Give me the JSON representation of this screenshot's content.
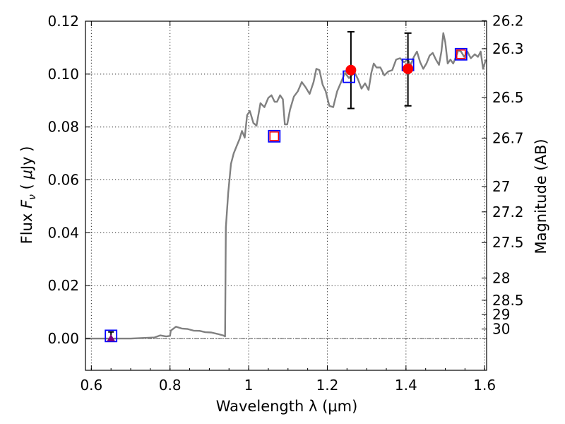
{
  "chart_data": {
    "type": "line",
    "xlabel": "Wavelength  λ (μm)",
    "ylabel_left": "Flux  F_ν  ( μJy )",
    "ylabel_right": "Magnitude (AB)",
    "xlim": [
      0.585,
      1.605
    ],
    "ylim": [
      -0.012,
      0.12
    ],
    "grid": true,
    "x_ticks": [
      0.6,
      0.8,
      1.0,
      1.2,
      1.4,
      1.6
    ],
    "x_tick_labels": [
      "0.6",
      "0.8",
      "1",
      "1.2",
      "1.4",
      "1.6"
    ],
    "y_ticks": [
      0.0,
      0.02,
      0.04,
      0.06,
      0.08,
      0.1,
      0.12
    ],
    "y_tick_labels": [
      "0.00",
      "0.02",
      "0.04",
      "0.06",
      "0.08",
      "0.10",
      "0.12"
    ],
    "mag_ticks": [
      {
        "label": "26.2",
        "flux": 0.1202
      },
      {
        "label": "26.3",
        "flux": 0.1096
      },
      {
        "label": "26.5",
        "flux": 0.0912
      },
      {
        "label": "26.7",
        "flux": 0.0758
      },
      {
        "label": "27",
        "flux": 0.0575
      },
      {
        "label": "27.2",
        "flux": 0.0479
      },
      {
        "label": "27.5",
        "flux": 0.0363
      },
      {
        "label": "28",
        "flux": 0.0229
      },
      {
        "label": "28.5",
        "flux": 0.0145
      },
      {
        "label": "29",
        "flux": 0.0091
      },
      {
        "label": "30",
        "flux": 0.0036
      }
    ],
    "series": [
      {
        "kind": "model-spectrum",
        "color": "#808080",
        "points": [
          [
            0.585,
            0.0
          ],
          [
            0.7,
            0.0
          ],
          [
            0.73,
            0.0002
          ],
          [
            0.76,
            0.0004
          ],
          [
            0.775,
            0.0012
          ],
          [
            0.79,
            0.0008
          ],
          [
            0.8,
            0.001
          ],
          [
            0.802,
            0.003
          ],
          [
            0.815,
            0.0045
          ],
          [
            0.83,
            0.0038
          ],
          [
            0.845,
            0.0036
          ],
          [
            0.86,
            0.003
          ],
          [
            0.875,
            0.0029
          ],
          [
            0.89,
            0.0024
          ],
          [
            0.905,
            0.0023
          ],
          [
            0.92,
            0.0018
          ],
          [
            0.935,
            0.0012
          ],
          [
            0.94,
            0.0008
          ],
          [
            0.942,
            0.042
          ],
          [
            0.948,
            0.055
          ],
          [
            0.955,
            0.066
          ],
          [
            0.962,
            0.07
          ],
          [
            0.97,
            0.073
          ],
          [
            0.977,
            0.0755
          ],
          [
            0.983,
            0.0785
          ],
          [
            0.99,
            0.076
          ],
          [
            0.996,
            0.0845
          ],
          [
            1.003,
            0.086
          ],
          [
            1.012,
            0.0815
          ],
          [
            1.02,
            0.0805
          ],
          [
            1.03,
            0.089
          ],
          [
            1.04,
            0.0875
          ],
          [
            1.05,
            0.091
          ],
          [
            1.058,
            0.092
          ],
          [
            1.066,
            0.0895
          ],
          [
            1.072,
            0.0895
          ],
          [
            1.08,
            0.092
          ],
          [
            1.087,
            0.0905
          ],
          [
            1.092,
            0.081
          ],
          [
            1.098,
            0.081
          ],
          [
            1.105,
            0.0865
          ],
          [
            1.115,
            0.0915
          ],
          [
            1.125,
            0.0935
          ],
          [
            1.135,
            0.097
          ],
          [
            1.145,
            0.095
          ],
          [
            1.155,
            0.0925
          ],
          [
            1.165,
            0.097
          ],
          [
            1.172,
            0.102
          ],
          [
            1.18,
            0.1015
          ],
          [
            1.188,
            0.096
          ],
          [
            1.196,
            0.0935
          ],
          [
            1.205,
            0.088
          ],
          [
            1.215,
            0.0875
          ],
          [
            1.225,
            0.0935
          ],
          [
            1.235,
            0.097
          ],
          [
            1.245,
            0.1005
          ],
          [
            1.255,
            0.0985
          ],
          [
            1.262,
            0.0995
          ],
          [
            1.27,
            0.1005
          ],
          [
            1.278,
            0.098
          ],
          [
            1.287,
            0.0945
          ],
          [
            1.296,
            0.0965
          ],
          [
            1.305,
            0.094
          ],
          [
            1.312,
            0.1005
          ],
          [
            1.318,
            0.104
          ],
          [
            1.325,
            0.1025
          ],
          [
            1.335,
            0.1025
          ],
          [
            1.345,
            0.0995
          ],
          [
            1.355,
            0.101
          ],
          [
            1.365,
            0.1015
          ],
          [
            1.375,
            0.1055
          ],
          [
            1.385,
            0.106
          ],
          [
            1.395,
            0.1045
          ],
          [
            1.405,
            0.1055
          ],
          [
            1.412,
            0.1035
          ],
          [
            1.42,
            0.1065
          ],
          [
            1.428,
            0.1085
          ],
          [
            1.436,
            0.1045
          ],
          [
            1.444,
            0.102
          ],
          [
            1.452,
            0.104
          ],
          [
            1.46,
            0.107
          ],
          [
            1.468,
            0.108
          ],
          [
            1.476,
            0.1055
          ],
          [
            1.484,
            0.1035
          ],
          [
            1.49,
            0.1085
          ],
          [
            1.495,
            0.1155
          ],
          [
            1.5,
            0.112
          ],
          [
            1.506,
            0.104
          ],
          [
            1.513,
            0.1055
          ],
          [
            1.52,
            0.104
          ],
          [
            1.527,
            0.1065
          ],
          [
            1.533,
            0.109
          ],
          [
            1.54,
            0.1085
          ],
          [
            1.548,
            0.1065
          ],
          [
            1.556,
            0.1085
          ],
          [
            1.565,
            0.106
          ],
          [
            1.575,
            0.1075
          ],
          [
            1.583,
            0.1065
          ],
          [
            1.59,
            0.1085
          ],
          [
            1.596,
            0.102
          ],
          [
            1.603,
            0.1055
          ]
        ]
      }
    ],
    "observed_points": [
      {
        "x": 1.26,
        "y": 0.1015,
        "err_low": 0.087,
        "err_high": 0.116,
        "color": "#ff0000"
      },
      {
        "x": 1.405,
        "y": 0.102,
        "err_low": 0.088,
        "err_high": 0.1155,
        "color": "#ff0000"
      }
    ],
    "upper_limit_points": [
      {
        "x": 0.65,
        "y": 0.0,
        "err_high": 0.0025,
        "color": "#800080"
      }
    ],
    "model_band_boxes_blue": [
      {
        "x": 0.65,
        "y": 0.001
      },
      {
        "x": 1.065,
        "y": 0.0765
      },
      {
        "x": 1.255,
        "y": 0.099
      },
      {
        "x": 1.405,
        "y": 0.1035
      },
      {
        "x": 1.54,
        "y": 0.1075
      }
    ],
    "model_band_boxes_red": [
      {
        "x": 1.065,
        "y": 0.0765
      },
      {
        "x": 1.54,
        "y": 0.1075
      }
    ],
    "zero_line": {
      "y": 0.0,
      "style": "dash-dot",
      "color": "#555555"
    }
  }
}
